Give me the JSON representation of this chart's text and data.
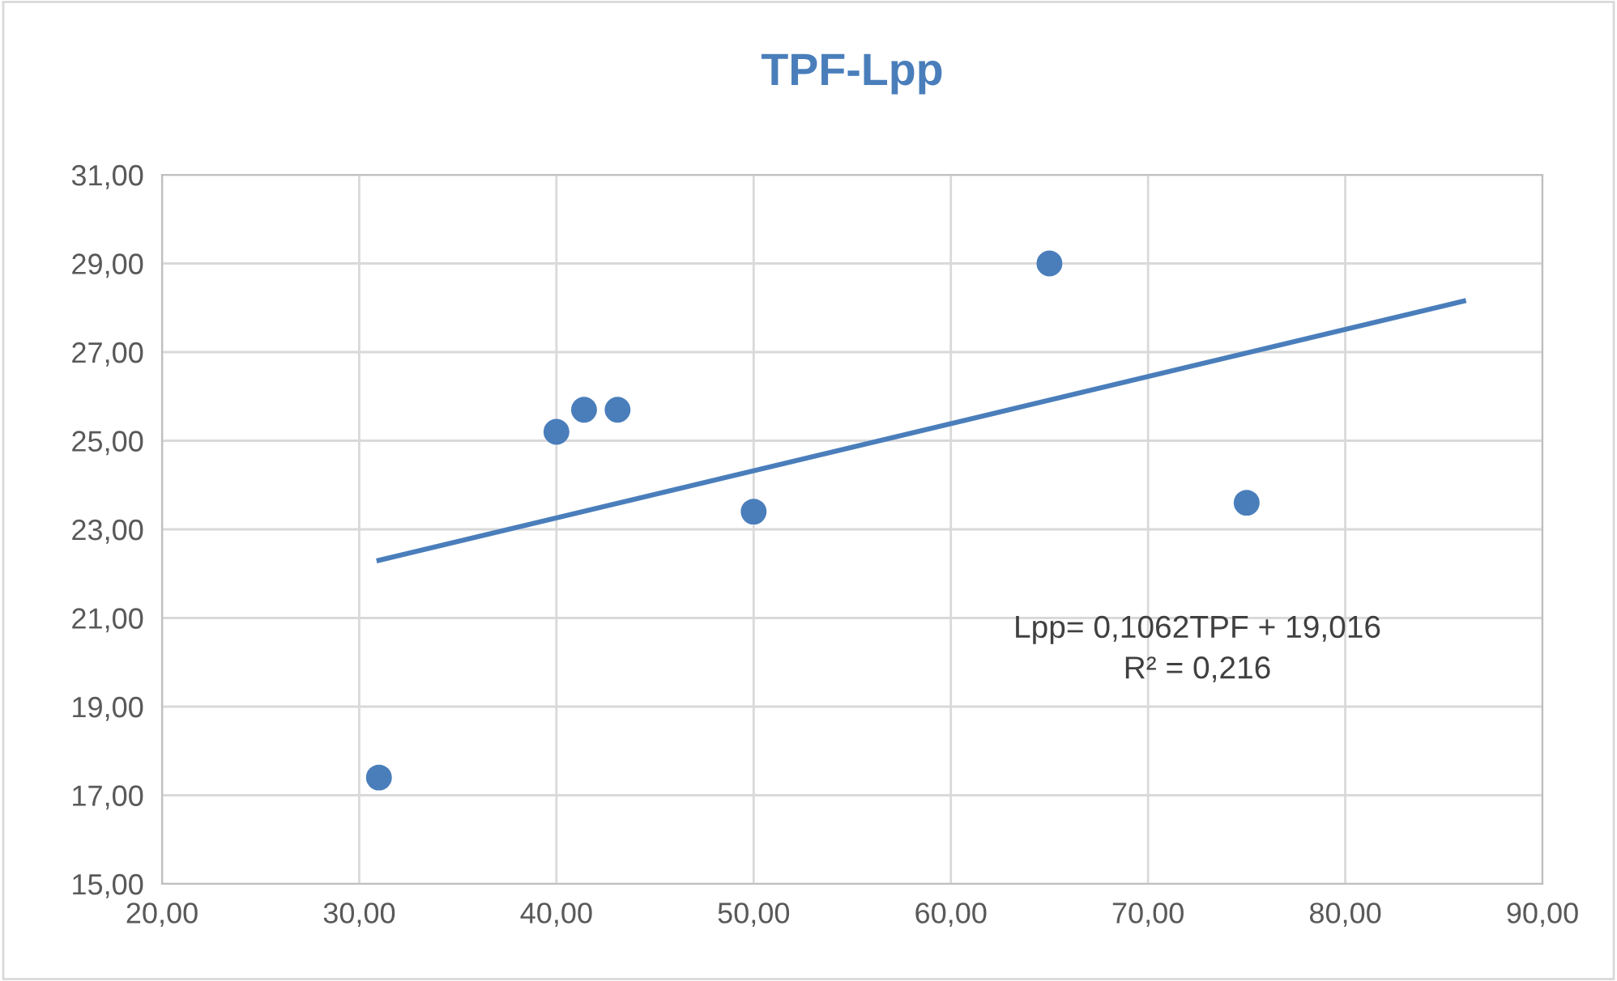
{
  "chart_data": {
    "type": "scatter",
    "title": "TPF-Lpp",
    "series": [
      {
        "color": "#4a7ebb",
        "marker": "circle",
        "x": [
          31.0,
          40.0,
          41.4,
          43.1,
          50.0,
          65.0,
          75.0
        ],
        "values": [
          17.4,
          25.2,
          25.7,
          25.7,
          23.4,
          29.0,
          23.6
        ]
      },
      {
        "type": "line",
        "marker": "none",
        "color": "#4a7ebb",
        "x": [
          31.0,
          86.0
        ],
        "values": [
          22.3,
          28.15
        ]
      }
    ],
    "annotations": [
      "Lpp= 0,1062TPF + 19,016\nR² = 0,216"
    ],
    "xlim": [
      20,
      90
    ],
    "ylim": [
      15,
      31
    ],
    "xticks": [
      {
        "value": 20,
        "label": "20,00"
      },
      {
        "value": 30,
        "label": "30,00"
      },
      {
        "value": 40,
        "label": "40,00"
      },
      {
        "value": 50,
        "label": "50,00"
      },
      {
        "value": 60,
        "label": "60,00"
      },
      {
        "value": 70,
        "label": "70,00"
      },
      {
        "value": 80,
        "label": "80,00"
      },
      {
        "value": 90,
        "label": "90,00"
      }
    ],
    "yticks": [
      {
        "value": 15,
        "label": "15,00"
      },
      {
        "value": 17,
        "label": "17,00"
      },
      {
        "value": 19,
        "label": "19,00"
      },
      {
        "value": 21,
        "label": "21,00"
      },
      {
        "value": 23,
        "label": "23,00"
      },
      {
        "value": 25,
        "label": "25,00"
      },
      {
        "value": 27,
        "label": "27,00"
      },
      {
        "value": 29,
        "label": "29,00"
      },
      {
        "value": 31,
        "label": "31,00"
      }
    ],
    "grid": true,
    "legend": false
  }
}
